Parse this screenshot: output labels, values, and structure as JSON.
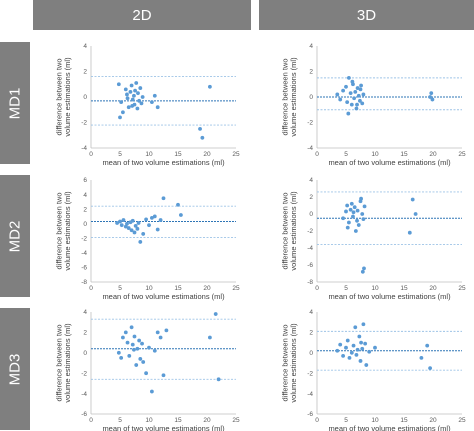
{
  "columns": [
    "2D",
    "3D"
  ],
  "rows": [
    "MD1",
    "MD2",
    "MD3"
  ],
  "colors": {
    "header_bg": "#7f7f7f",
    "point": "#5b9bd5",
    "mean_line": "#2e75b6",
    "limit_line": "#9dc3e6"
  },
  "chart_data": [
    {
      "type": "scatter",
      "row": "MD1",
      "col": "2D",
      "xlabel": "mean of two volume estimations (ml)",
      "ylabel": "difference between two volume estimations (ml)",
      "xlim": [
        0,
        25
      ],
      "ylim": [
        -4,
        4
      ],
      "xticks": [
        0,
        5,
        10,
        15,
        20,
        25
      ],
      "yticks": [
        -4,
        -2,
        0,
        2,
        4
      ],
      "mean": -0.3,
      "limits": [
        1.6,
        -2.2
      ],
      "x": [
        4.8,
        5.2,
        5.5,
        6.0,
        6.2,
        6.5,
        6.8,
        7.0,
        7.2,
        7.4,
        7.5,
        7.6,
        7.8,
        8.0,
        8.1,
        8.3,
        8.5,
        8.7,
        8.9,
        5.0,
        6.3,
        7.1,
        10.5,
        11.0,
        11.5,
        18.8,
        19.2,
        20.5
      ],
      "y": [
        1.0,
        -0.4,
        -1.2,
        0.6,
        0.2,
        -0.8,
        0.4,
        0.9,
        -0.2,
        0.1,
        -0.6,
        0.5,
        1.1,
        -0.9,
        0.3,
        -0.3,
        0.7,
        -0.5,
        0.0,
        -1.6,
        -0.1,
        -0.7,
        -0.4,
        0.1,
        -0.8,
        -2.5,
        -3.2,
        0.8
      ]
    },
    {
      "type": "scatter",
      "row": "MD1",
      "col": "3D",
      "xlabel": "mean of two volume estimations (ml)",
      "ylabel": "difference between two volume estimations (ml)",
      "xlim": [
        0,
        25
      ],
      "ylim": [
        -4,
        4
      ],
      "xticks": [
        0,
        5,
        10,
        15,
        20,
        25
      ],
      "yticks": [
        -4,
        -2,
        0,
        2,
        4
      ],
      "mean": 0.0,
      "limits": [
        1.5,
        -1.0
      ],
      "x": [
        3.5,
        4.0,
        4.5,
        5.0,
        5.2,
        5.5,
        5.8,
        6.0,
        6.2,
        6.4,
        6.6,
        6.8,
        7.0,
        7.2,
        7.4,
        7.6,
        7.8,
        8.0,
        5.4,
        6.1,
        6.9,
        7.5,
        19.5,
        19.7,
        19.9
      ],
      "y": [
        0.2,
        -0.2,
        0.5,
        0.8,
        -0.4,
        1.5,
        0.3,
        -0.6,
        1.0,
        -0.1,
        0.4,
        -0.9,
        0.7,
        0.1,
        -0.3,
        0.9,
        -0.5,
        0.2,
        -1.3,
        1.2,
        -0.6,
        0.6,
        0.0,
        0.3,
        -0.2
      ]
    },
    {
      "type": "scatter",
      "row": "MD2",
      "col": "2D",
      "xlabel": "mean of two volume estimations (ml)",
      "ylabel": "difference between two volume estimations (ml)",
      "xlim": [
        0,
        25
      ],
      "ylim": [
        -8,
        6
      ],
      "xticks": [
        0,
        5,
        10,
        15,
        20,
        25
      ],
      "yticks": [
        -8,
        -6,
        -4,
        -2,
        0,
        2,
        4,
        6
      ],
      "mean": 0.3,
      "limits": [
        2.4,
        -1.9
      ],
      "x": [
        4.5,
        5.0,
        5.3,
        5.6,
        6.0,
        6.2,
        6.5,
        6.8,
        7.0,
        7.2,
        7.5,
        7.7,
        8.0,
        8.2,
        8.5,
        9.0,
        9.5,
        10.0,
        10.5,
        11.0,
        11.5,
        12.0,
        12.5,
        15.0,
        15.5
      ],
      "y": [
        0.1,
        0.3,
        -0.2,
        0.5,
        -0.4,
        0.0,
        -0.6,
        0.2,
        -0.9,
        0.4,
        -1.2,
        -0.3,
        -0.7,
        0.1,
        -2.5,
        -1.4,
        0.6,
        -0.2,
        0.8,
        1.0,
        -0.8,
        0.5,
        3.5,
        2.6,
        1.2
      ]
    },
    {
      "type": "scatter",
      "row": "MD2",
      "col": "3D",
      "xlabel": "mean of two volume estimations (ml)",
      "ylabel": "difference between two volume estimations (ml)",
      "xlim": [
        0,
        25
      ],
      "ylim": [
        -8,
        4
      ],
      "xticks": [
        0,
        5,
        10,
        15,
        20,
        25
      ],
      "yticks": [
        -8,
        -6,
        -4,
        -2,
        0,
        2,
        4
      ],
      "mean": -0.5,
      "limits": [
        2.6,
        -3.6
      ],
      "x": [
        4.5,
        5.0,
        5.2,
        5.5,
        5.8,
        6.0,
        6.2,
        6.5,
        6.7,
        7.0,
        7.2,
        7.5,
        7.8,
        8.0,
        8.2,
        5.3,
        6.3,
        6.9,
        7.6,
        16.0,
        16.5,
        17.0,
        7.9,
        8.1
      ],
      "y": [
        -0.5,
        0.3,
        1.0,
        -1.0,
        0.5,
        1.2,
        -0.3,
        0.8,
        -2.0,
        0.4,
        -1.3,
        1.5,
        0.0,
        -0.6,
        0.9,
        -1.6,
        0.2,
        -0.8,
        1.8,
        -2.2,
        1.7,
        0.0,
        -6.8,
        -6.4
      ]
    },
    {
      "type": "scatter",
      "row": "MD3",
      "col": "2D",
      "xlabel": "mean of two volume estimations (ml)",
      "ylabel": "difference between two volume estimations (ml)",
      "xlim": [
        0,
        25
      ],
      "ylim": [
        -6,
        4
      ],
      "xticks": [
        0,
        5,
        10,
        15,
        20,
        25
      ],
      "yticks": [
        -6,
        -4,
        -2,
        0,
        2,
        4
      ],
      "mean": 0.4,
      "limits": [
        3.3,
        -2.6
      ],
      "x": [
        4.8,
        5.5,
        6.0,
        6.3,
        6.6,
        7.0,
        7.2,
        7.5,
        7.8,
        8.0,
        8.3,
        8.5,
        8.8,
        9.0,
        9.5,
        10.0,
        10.5,
        11.0,
        11.5,
        12.0,
        12.5,
        13.0,
        5.2,
        7.4,
        20.5,
        21.5,
        22.0
      ],
      "y": [
        0.0,
        1.5,
        2.0,
        1.0,
        -0.3,
        2.5,
        0.8,
        1.6,
        -1.2,
        0.4,
        1.2,
        -0.6,
        0.9,
        -0.9,
        -2.0,
        0.5,
        -3.8,
        0.2,
        2.0,
        1.5,
        -2.2,
        2.2,
        -0.5,
        0.3,
        1.5,
        3.8,
        -2.6
      ]
    },
    {
      "type": "scatter",
      "row": "MD3",
      "col": "3D",
      "xlabel": "mean of two volume estimations (ml)",
      "ylabel": "difference between two volume estimations (ml)",
      "xlim": [
        0,
        25
      ],
      "ylim": [
        -6,
        4
      ],
      "xticks": [
        0,
        5,
        10,
        15,
        20,
        25
      ],
      "yticks": [
        -6,
        -4,
        -2,
        0,
        2,
        4
      ],
      "mean": 0.2,
      "limits": [
        2.1,
        -1.7
      ],
      "x": [
        3.5,
        4.0,
        4.5,
        5.0,
        5.3,
        5.6,
        6.0,
        6.3,
        6.6,
        7.0,
        7.3,
        7.5,
        7.8,
        8.0,
        8.3,
        8.5,
        9.0,
        10.0,
        6.8,
        7.6,
        18.0,
        19.0,
        19.5
      ],
      "y": [
        0.2,
        0.8,
        -0.3,
        0.5,
        1.2,
        -0.5,
        0.0,
        0.7,
        2.5,
        0.3,
        1.6,
        -0.8,
        0.4,
        2.8,
        0.9,
        -1.2,
        0.1,
        0.5,
        -0.2,
        1.0,
        -0.5,
        0.7,
        -1.5
      ]
    }
  ]
}
